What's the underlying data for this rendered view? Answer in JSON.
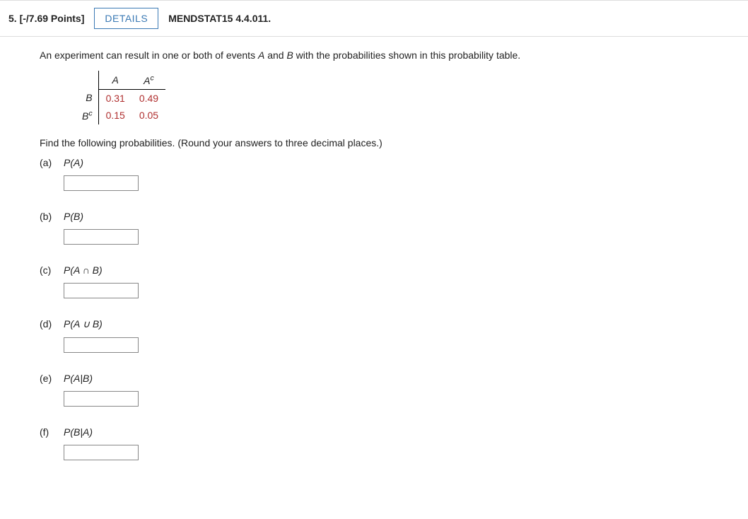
{
  "header": {
    "question_number": "5.",
    "points": "[-/7.69 Points]",
    "details_label": "DETAILS",
    "source": "MENDSTAT15 4.4.011."
  },
  "intro_text_pre": "An experiment can result in one or both of events ",
  "intro_A": "A",
  "intro_and": " and ",
  "intro_B": "B",
  "intro_text_post": " with the probabilities shown in this probability table.",
  "table": {
    "col_A": "A",
    "col_A_comp_base": "A",
    "col_A_comp_sup": "c",
    "row_B": "B",
    "row_B_comp_base": "B",
    "row_B_comp_sup": "c",
    "r1c1": "0.31",
    "r1c2": "0.49",
    "r2c1": "0.15",
    "r2c2": "0.05"
  },
  "instruction": "Find the following probabilities. (Round your answers to three decimal places.)",
  "parts": {
    "a": {
      "label": "(a)",
      "expr": "P(A)"
    },
    "b": {
      "label": "(b)",
      "expr": "P(B)"
    },
    "c": {
      "label": "(c)",
      "expr": "P(A ∩ B)"
    },
    "d": {
      "label": "(d)",
      "expr": "P(A ∪ B)"
    },
    "e": {
      "label": "(e)",
      "expr": "P(A|B)"
    },
    "f": {
      "label": "(f)",
      "expr": "P(B|A)"
    }
  },
  "style": {
    "accent_color": "#3a79b4",
    "value_color": "#b03030",
    "border_color": "#dddddd",
    "text_color": "#222222",
    "font_family": "Verdana, Arial, sans-serif"
  }
}
